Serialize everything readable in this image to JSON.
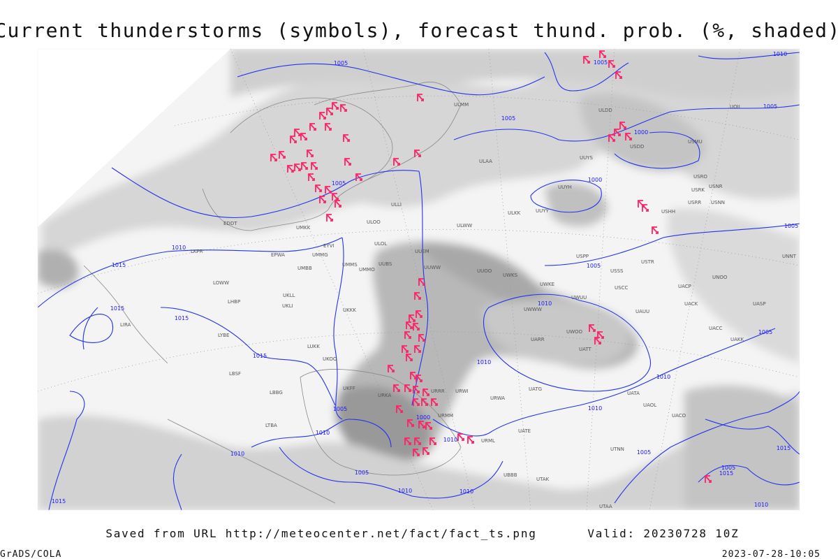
{
  "header": {
    "title": "Current thunderstorms (symbols), forecast thund. prob. (%, shaded)"
  },
  "map": {
    "isobar_labels": [
      "1005",
      "1010",
      "1005",
      "1005",
      "1005",
      "1000",
      "1005",
      "1000",
      "1010",
      "1015",
      "1005",
      "1005",
      "1015",
      "1015",
      "1010",
      "1015",
      "1010",
      "1010",
      "1005",
      "1005",
      "1010",
      "1000",
      "1010",
      "1010",
      "1005",
      "1010",
      "1005",
      "1010",
      "1010",
      "1015",
      "1010",
      "1015",
      "1005",
      "1015"
    ],
    "stations": [
      "ULMM",
      "ULDD",
      "UOII",
      "USDD",
      "USMU",
      "UUYS",
      "ULAA",
      "UUYH",
      "UUYY",
      "ULKK",
      "ULOO",
      "ULWW",
      "USRO",
      "USRK",
      "USNR",
      "USRR",
      "USNN",
      "USHH",
      "UMKK",
      "EDDT",
      "EPWA",
      "UMMG",
      "UMBB",
      "EYVI",
      "ULOL",
      "UUEM",
      "UUWW",
      "UMMS",
      "UMMO",
      "UUBS",
      "UUOO",
      "UWKS",
      "USPP",
      "USSS",
      "USTR",
      "USCC",
      "UWKE",
      "UWUU",
      "UWWW",
      "UATT",
      "UARR",
      "UWOO",
      "UAUU",
      "UACC",
      "UAKK",
      "UASP",
      "UACK",
      "UACP",
      "UNOO",
      "UNNT",
      "UKLL",
      "UKLI",
      "LOWW",
      "LHBP",
      "LIRA",
      "LYBE",
      "LUKK",
      "UKOO",
      "LBSF",
      "LBBG",
      "UKFF",
      "URKA",
      "URRR",
      "URWI",
      "URWA",
      "UATG",
      "UATA",
      "UAOL",
      "UACO",
      "UATE",
      "URMM",
      "URML",
      "UTNN",
      "UBBB",
      "UTAK",
      "UTAA",
      "LTBA",
      "UKKK",
      "LKPR",
      "ULLI"
    ]
  },
  "footer": {
    "source": "Saved from URL http://meteocenter.net/fact/fact_ts.png",
    "valid": "Valid: 20230728 10Z",
    "credit": "GrADS/COLA",
    "timestamp": "2023-07-28-10:05"
  }
}
